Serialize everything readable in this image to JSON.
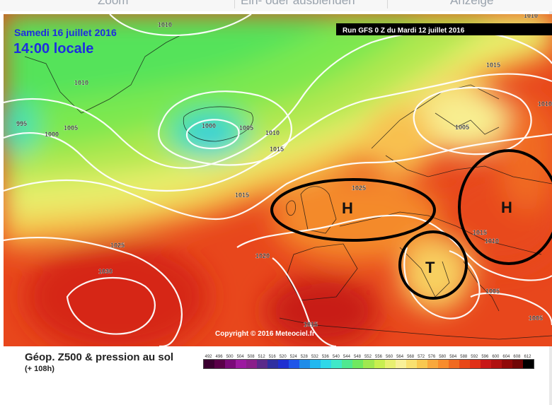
{
  "toolbar": {
    "items": [
      {
        "label": "Zoom"
      },
      {
        "label": "Ein- oder ausblenden"
      },
      {
        "label": "Anzeige"
      }
    ]
  },
  "map": {
    "date_label": "Samedi 16 juillet 2016",
    "time_label": "14:00 locale",
    "run_label": "Run GFS 0 Z du Mardi 12 juillet 2016",
    "copyright": "Copyright © 2016 Meteociel.fr",
    "pressure_labels": [
      "1010",
      "1010",
      "1010",
      "1015",
      "995",
      "1000",
      "1005",
      "1000",
      "1005",
      "1010",
      "1015",
      "1005",
      "1025",
      "1015",
      "1025",
      "1020",
      "1030",
      "1015",
      "1015",
      "1010",
      "1005",
      "1005",
      "1010"
    ],
    "systems": [
      {
        "label": "H",
        "type": "high"
      },
      {
        "label": "H",
        "type": "high"
      },
      {
        "label": "T",
        "type": "thermal-low"
      }
    ]
  },
  "legend": {
    "title": "Géop. Z500 & pression au sol",
    "subtitle": "(+ 108h)",
    "scale_values": [
      "492",
      "496",
      "500",
      "504",
      "508",
      "512",
      "516",
      "520",
      "524",
      "528",
      "532",
      "536",
      "540",
      "544",
      "548",
      "552",
      "556",
      "560",
      "564",
      "568",
      "572",
      "576",
      "580",
      "584",
      "588",
      "592",
      "596",
      "600",
      "604",
      "608",
      "612"
    ],
    "scale_colors": [
      "#3b0030",
      "#5a0048",
      "#7a0a78",
      "#9c1aa0",
      "#8a1f8a",
      "#5b2a8a",
      "#2f2fa0",
      "#1f2fd0",
      "#1f55e8",
      "#1f8ce8",
      "#22b8f0",
      "#30d8e8",
      "#40e8c8",
      "#50e890",
      "#70e860",
      "#a0e850",
      "#c8ef50",
      "#e8f070",
      "#f8f098",
      "#f8e070",
      "#f8c850",
      "#f8a83c",
      "#f88c2c",
      "#f06a20",
      "#e84818",
      "#e03018",
      "#c81818",
      "#b01010",
      "#900808",
      "#700606",
      "#000000"
    ]
  }
}
